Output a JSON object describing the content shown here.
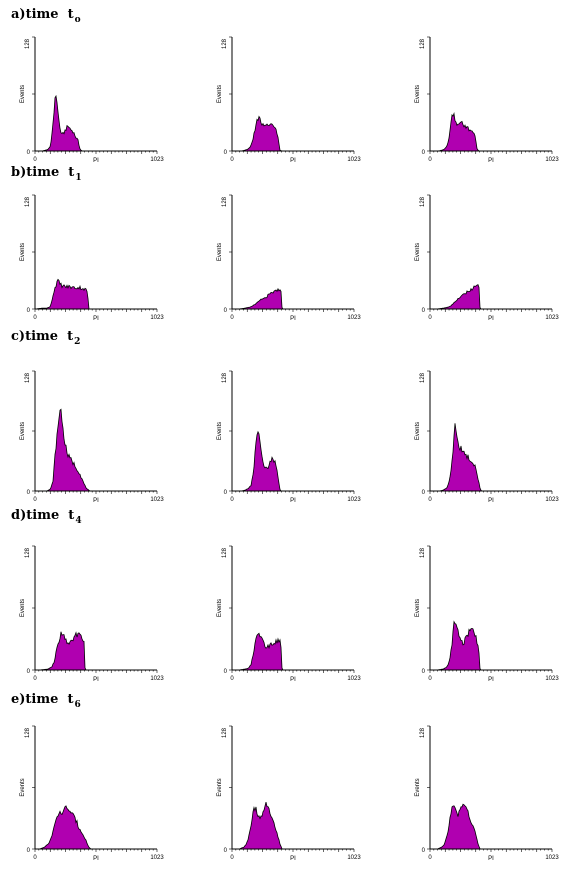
{
  "colors": {
    "fill": "#B000B0",
    "outline": "#000000",
    "axis": "#000000"
  },
  "rows": [
    {
      "prefix": "a)",
      "word": "time",
      "sub_main": "t",
      "sub": "o"
    },
    {
      "prefix": "b)",
      "word": "time",
      "sub_main": "t",
      "sub": "1"
    },
    {
      "prefix": "c)",
      "word": "time",
      "sub_main": "t",
      "sub": "2"
    },
    {
      "prefix": "d)",
      "word": "time",
      "sub_main": "t",
      "sub": "4"
    },
    {
      "prefix": "e)",
      "word": "time",
      "sub_main": "t",
      "sub": "6"
    }
  ],
  "chart_data": [
    {
      "row": 0,
      "col": 0,
      "type": "area",
      "xlabel": "PI",
      "ylabel": "Events",
      "xlim": [
        0,
        1023
      ],
      "ylim": [
        0,
        128
      ],
      "xticks": [
        "0",
        "1023"
      ],
      "yticks": [
        "0",
        "128"
      ],
      "x": [
        60,
        90,
        110,
        130,
        150,
        165,
        175,
        185,
        195,
        210,
        225,
        240,
        260,
        280,
        300,
        320,
        340,
        360,
        375,
        385,
        400,
        420,
        440,
        460
      ],
      "values": [
        0,
        1,
        2,
        5,
        30,
        55,
        64,
        55,
        40,
        25,
        18,
        20,
        25,
        28,
        24,
        22,
        16,
        12,
        3,
        1,
        0,
        0,
        0,
        0
      ]
    },
    {
      "row": 0,
      "col": 1,
      "type": "area",
      "xlabel": "PI",
      "ylabel": "Events",
      "xlim": [
        0,
        1023
      ],
      "ylim": [
        0,
        128
      ],
      "xticks": [
        "0",
        "1023"
      ],
      "yticks": [
        "0",
        "128"
      ],
      "x": [
        80,
        110,
        130,
        150,
        170,
        190,
        210,
        230,
        250,
        270,
        290,
        310,
        330,
        350,
        370,
        390,
        400,
        420
      ],
      "values": [
        0,
        1,
        2,
        4,
        10,
        22,
        38,
        36,
        32,
        30,
        28,
        30,
        28,
        27,
        24,
        12,
        1,
        0
      ]
    },
    {
      "row": 0,
      "col": 2,
      "type": "area",
      "xlabel": "PI",
      "ylabel": "Events",
      "xlim": [
        0,
        1023
      ],
      "ylim": [
        0,
        128
      ],
      "xticks": [
        "0",
        "1023"
      ],
      "yticks": [
        "0",
        "128"
      ],
      "x": [
        70,
        100,
        120,
        140,
        160,
        180,
        200,
        220,
        240,
        260,
        280,
        300,
        320,
        340,
        360,
        380,
        395,
        410
      ],
      "values": [
        0,
        1,
        2,
        5,
        15,
        38,
        42,
        30,
        28,
        32,
        30,
        28,
        25,
        24,
        22,
        16,
        2,
        0
      ]
    },
    {
      "row": 1,
      "col": 0,
      "type": "area",
      "xlabel": "PI",
      "ylabel": "Events",
      "xlim": [
        0,
        1023
      ],
      "ylim": [
        0,
        128
      ],
      "xticks": [
        "0",
        "1023"
      ],
      "yticks": [
        "0",
        "128"
      ],
      "x": [
        0,
        60,
        100,
        130,
        150,
        170,
        190,
        210,
        230,
        260,
        290,
        320,
        350,
        380,
        420,
        440,
        450
      ],
      "values": [
        0,
        1,
        1,
        3,
        15,
        25,
        32,
        28,
        26,
        25,
        25,
        24,
        24,
        24,
        22,
        20,
        0
      ]
    },
    {
      "row": 1,
      "col": 1,
      "type": "area",
      "xlabel": "PI",
      "ylabel": "Events",
      "xlim": [
        0,
        1023
      ],
      "ylim": [
        0,
        128
      ],
      "xticks": [
        "0",
        "1023"
      ],
      "yticks": [
        "0",
        "128"
      ],
      "x": [
        60,
        110,
        150,
        180,
        210,
        240,
        270,
        300,
        330,
        360,
        390,
        410,
        420
      ],
      "values": [
        0,
        1,
        2,
        4,
        7,
        10,
        12,
        15,
        18,
        20,
        22,
        23,
        0
      ]
    },
    {
      "row": 1,
      "col": 2,
      "type": "area",
      "xlabel": "PI",
      "ylabel": "Events",
      "xlim": [
        0,
        1023
      ],
      "ylim": [
        0,
        128
      ],
      "xticks": [
        "0",
        "1023"
      ],
      "yticks": [
        "0",
        "128"
      ],
      "x": [
        60,
        110,
        150,
        180,
        210,
        240,
        270,
        300,
        330,
        360,
        390,
        410,
        420
      ],
      "values": [
        0,
        1,
        2,
        4,
        8,
        12,
        15,
        18,
        21,
        23,
        26,
        27,
        0
      ]
    },
    {
      "row": 2,
      "col": 0,
      "type": "area",
      "xlabel": "PI",
      "ylabel": "Events",
      "xlim": [
        0,
        1023
      ],
      "ylim": [
        0,
        128
      ],
      "xticks": [
        "0",
        "1023"
      ],
      "yticks": [
        "0",
        "128"
      ],
      "x": [
        100,
        130,
        150,
        170,
        185,
        200,
        215,
        230,
        250,
        270,
        290,
        310,
        330,
        350,
        370,
        390,
        410,
        430,
        450,
        460
      ],
      "values": [
        0,
        2,
        10,
        40,
        60,
        75,
        93,
        70,
        52,
        40,
        35,
        32,
        28,
        24,
        20,
        14,
        8,
        3,
        1,
        0
      ]
    },
    {
      "row": 2,
      "col": 1,
      "type": "area",
      "xlabel": "PI",
      "ylabel": "Events",
      "xlim": [
        0,
        1023
      ],
      "ylim": [
        0,
        128
      ],
      "xticks": [
        "0",
        "1023"
      ],
      "yticks": [
        "0",
        "128"
      ],
      "x": [
        80,
        110,
        140,
        160,
        180,
        200,
        220,
        235,
        250,
        265,
        280,
        300,
        320,
        340,
        360,
        380,
        400,
        410
      ],
      "values": [
        0,
        1,
        3,
        6,
        20,
        50,
        66,
        55,
        40,
        30,
        25,
        25,
        30,
        36,
        30,
        20,
        2,
        0
      ]
    },
    {
      "row": 2,
      "col": 2,
      "type": "area",
      "xlabel": "PI",
      "ylabel": "Events",
      "xlim": [
        0,
        1023
      ],
      "ylim": [
        0,
        128
      ],
      "xticks": [
        "0",
        "1023"
      ],
      "yticks": [
        "0",
        "128"
      ],
      "x": [
        80,
        110,
        140,
        160,
        180,
        200,
        210,
        220,
        240,
        260,
        280,
        300,
        320,
        340,
        360,
        380,
        400,
        420,
        430
      ],
      "values": [
        0,
        1,
        3,
        10,
        25,
        55,
        72,
        62,
        48,
        45,
        40,
        38,
        36,
        34,
        30,
        25,
        15,
        3,
        0
      ]
    },
    {
      "row": 3,
      "col": 0,
      "type": "area",
      "xlabel": "PI",
      "ylabel": "Events",
      "xlim": [
        0,
        1023
      ],
      "ylim": [
        0,
        128
      ],
      "xticks": [
        "0",
        "1023"
      ],
      "yticks": [
        "0",
        "128"
      ],
      "x": [
        40,
        110,
        140,
        160,
        180,
        200,
        220,
        240,
        260,
        280,
        300,
        320,
        340,
        360,
        390,
        410,
        420
      ],
      "values": [
        0,
        1,
        3,
        8,
        20,
        30,
        38,
        35,
        32,
        25,
        28,
        32,
        35,
        38,
        36,
        30,
        0
      ]
    },
    {
      "row": 3,
      "col": 1,
      "type": "area",
      "xlabel": "PI",
      "ylabel": "Events",
      "xlim": [
        0,
        1023
      ],
      "ylim": [
        0,
        128
      ],
      "xticks": [
        "0",
        "1023"
      ],
      "yticks": [
        "0",
        "128"
      ],
      "x": [
        60,
        110,
        140,
        160,
        180,
        200,
        220,
        240,
        260,
        280,
        300,
        320,
        340,
        360,
        390,
        410,
        420
      ],
      "values": [
        0,
        1,
        2,
        6,
        18,
        30,
        38,
        35,
        30,
        25,
        24,
        25,
        27,
        29,
        30,
        28,
        0
      ]
    },
    {
      "row": 3,
      "col": 2,
      "type": "area",
      "xlabel": "PI",
      "ylabel": "Events",
      "xlim": [
        0,
        1023
      ],
      "ylim": [
        0,
        128
      ],
      "xticks": [
        "0",
        "1023"
      ],
      "yticks": [
        "0",
        "128"
      ],
      "x": [
        60,
        110,
        140,
        160,
        180,
        200,
        220,
        240,
        260,
        280,
        300,
        320,
        340,
        360,
        390,
        410,
        420
      ],
      "values": [
        0,
        1,
        3,
        8,
        22,
        48,
        45,
        38,
        30,
        28,
        32,
        38,
        42,
        40,
        32,
        20,
        0
      ]
    },
    {
      "row": 4,
      "col": 0,
      "type": "area",
      "xlabel": "PI",
      "ylabel": "Events",
      "xlim": [
        0,
        1023
      ],
      "ylim": [
        0,
        128
      ],
      "xticks": [
        "0",
        "1023"
      ],
      "yticks": [
        "0",
        "128"
      ],
      "x": [
        40,
        80,
        110,
        130,
        150,
        170,
        190,
        210,
        230,
        250,
        270,
        290,
        310,
        330,
        350,
        370,
        390,
        410,
        430,
        450,
        470
      ],
      "values": [
        0,
        2,
        5,
        10,
        18,
        26,
        34,
        40,
        36,
        42,
        44,
        40,
        36,
        32,
        28,
        22,
        18,
        14,
        8,
        2,
        0
      ]
    },
    {
      "row": 4,
      "col": 1,
      "type": "area",
      "xlabel": "PI",
      "ylabel": "Events",
      "xlim": [
        0,
        1023
      ],
      "ylim": [
        0,
        128
      ],
      "xticks": [
        "0",
        "1023"
      ],
      "yticks": [
        "0",
        "128"
      ],
      "x": [
        60,
        100,
        120,
        140,
        160,
        180,
        200,
        220,
        240,
        260,
        280,
        300,
        320,
        340,
        360,
        380,
        400,
        420
      ],
      "values": [
        0,
        2,
        5,
        12,
        25,
        40,
        42,
        36,
        32,
        38,
        48,
        44,
        36,
        30,
        24,
        16,
        6,
        0
      ]
    },
    {
      "row": 4,
      "col": 2,
      "type": "area",
      "xlabel": "PI",
      "ylabel": "Events",
      "xlim": [
        0,
        1023
      ],
      "ylim": [
        0,
        128
      ],
      "xticks": [
        "0",
        "1023"
      ],
      "yticks": [
        "0",
        "128"
      ],
      "x": [
        60,
        100,
        120,
        140,
        160,
        180,
        200,
        220,
        240,
        260,
        280,
        300,
        320,
        340,
        360,
        380,
        400,
        420
      ],
      "values": [
        0,
        2,
        5,
        12,
        26,
        40,
        44,
        38,
        36,
        42,
        48,
        46,
        38,
        30,
        24,
        18,
        6,
        0
      ]
    }
  ]
}
